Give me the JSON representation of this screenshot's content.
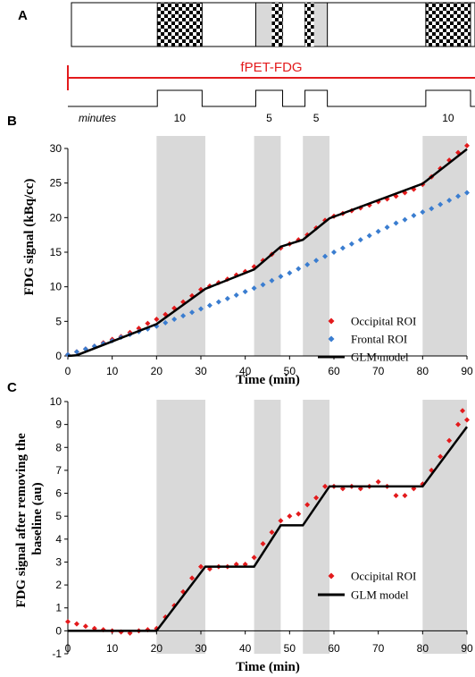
{
  "panel_a": {
    "letter": "A",
    "fpet_label": "fPET-FDG",
    "minutes_label": "minutes",
    "stim_blocks": [
      {
        "start": 20,
        "end": 30,
        "label": "10"
      },
      {
        "start": 42,
        "end": 48,
        "label": "5"
      },
      {
        "start": 53,
        "end": 58,
        "label": "5"
      },
      {
        "start": 80,
        "end": 90,
        "label": "10"
      }
    ],
    "colors": {
      "fpet": "#e31a1c",
      "checker_dark": "#000000",
      "checker_light": "#ffffff",
      "stim_fill": "#d9d9d9"
    }
  },
  "chart_data": [
    {
      "type": "scatter",
      "panel_letter": "B",
      "xlabel": "Time (min)",
      "ylabel": "FDG signal (kBq/cc)",
      "xlim": [
        0,
        90
      ],
      "ylim": [
        0,
        30
      ],
      "x_ticks": [
        0,
        10,
        20,
        30,
        40,
        50,
        60,
        70,
        80,
        90
      ],
      "y_ticks": [
        0,
        5,
        10,
        15,
        20,
        25,
        30
      ],
      "shaded_intervals": [
        [
          20,
          31
        ],
        [
          42,
          48
        ],
        [
          53,
          59
        ],
        [
          80,
          90
        ]
      ],
      "legend_position": "right",
      "series": [
        {
          "name": "Occipital ROI",
          "kind": "scatter",
          "color": "#e31a1c",
          "x": [
            0,
            2,
            4,
            6,
            8,
            10,
            12,
            14,
            16,
            18,
            20,
            22,
            24,
            26,
            28,
            30,
            32,
            34,
            36,
            38,
            40,
            42,
            44,
            46,
            48,
            50,
            52,
            54,
            56,
            58,
            60,
            62,
            64,
            66,
            68,
            70,
            72,
            74,
            76,
            78,
            80,
            82,
            84,
            86,
            88,
            90
          ],
          "y": [
            0.2,
            0.6,
            1.0,
            1.4,
            1.9,
            2.4,
            2.8,
            3.4,
            4.0,
            4.7,
            5.3,
            6.0,
            6.9,
            7.8,
            8.7,
            9.6,
            10.1,
            10.6,
            11.1,
            11.7,
            12.2,
            12.9,
            13.8,
            14.7,
            15.6,
            16.2,
            16.8,
            17.5,
            18.5,
            19.6,
            20.2,
            20.6,
            21.0,
            21.4,
            21.8,
            22.3,
            22.7,
            23.1,
            23.6,
            24.1,
            24.8,
            25.9,
            27.1,
            28.3,
            29.4,
            30.4
          ]
        },
        {
          "name": "Frontal ROI",
          "kind": "scatter",
          "color": "#3a7dd0",
          "x": [
            0,
            2,
            4,
            6,
            8,
            10,
            12,
            14,
            16,
            18,
            20,
            22,
            24,
            26,
            28,
            30,
            32,
            34,
            36,
            38,
            40,
            42,
            44,
            46,
            48,
            50,
            52,
            54,
            56,
            58,
            60,
            62,
            64,
            66,
            68,
            70,
            72,
            74,
            76,
            78,
            80,
            82,
            84,
            86,
            88,
            90
          ],
          "y": [
            0.2,
            0.6,
            1.0,
            1.4,
            1.8,
            2.2,
            2.7,
            3.1,
            3.5,
            3.9,
            4.3,
            4.8,
            5.3,
            5.8,
            6.3,
            6.8,
            7.3,
            7.8,
            8.3,
            8.8,
            9.3,
            9.8,
            10.3,
            10.9,
            11.5,
            12.0,
            12.6,
            13.2,
            13.8,
            14.4,
            15.0,
            15.6,
            16.2,
            16.8,
            17.4,
            18.0,
            18.6,
            19.2,
            19.7,
            20.3,
            20.8,
            21.3,
            21.9,
            22.5,
            23.1,
            23.6
          ]
        },
        {
          "name": "GLM model",
          "kind": "line",
          "color": "#000000",
          "x": [
            0,
            2,
            20,
            31,
            42,
            48,
            53,
            59,
            80,
            90
          ],
          "y": [
            0,
            0.1,
            4.6,
            9.7,
            12.5,
            15.8,
            16.8,
            19.9,
            24.9,
            29.9
          ]
        }
      ]
    },
    {
      "type": "scatter",
      "panel_letter": "C",
      "xlabel": "Time (min)",
      "ylabel": "FDG signal after removing the baseline (au)",
      "xlim": [
        0,
        90
      ],
      "ylim": [
        -1,
        10
      ],
      "x_ticks": [
        0,
        10,
        20,
        30,
        40,
        50,
        60,
        70,
        80,
        90
      ],
      "y_ticks": [
        -1,
        0,
        1,
        2,
        3,
        4,
        5,
        6,
        7,
        8,
        9,
        10
      ],
      "shaded_intervals": [
        [
          20,
          31
        ],
        [
          42,
          48
        ],
        [
          53,
          59
        ],
        [
          80,
          90
        ]
      ],
      "legend_position": "right",
      "series": [
        {
          "name": "Occipital ROI",
          "kind": "scatter",
          "color": "#e31a1c",
          "x": [
            0,
            2,
            4,
            6,
            8,
            10,
            12,
            14,
            16,
            18,
            20,
            22,
            24,
            26,
            28,
            30,
            32,
            34,
            36,
            38,
            40,
            42,
            44,
            46,
            48,
            50,
            52,
            54,
            56,
            58,
            60,
            62,
            64,
            66,
            68,
            70,
            72,
            74,
            76,
            78,
            80,
            82,
            84,
            86,
            88,
            89,
            90
          ],
          "y": [
            0.4,
            0.3,
            0.2,
            0.1,
            0.05,
            0,
            -0.05,
            -0.1,
            0,
            0.05,
            0.1,
            0.6,
            1.1,
            1.7,
            2.3,
            2.8,
            2.7,
            2.8,
            2.8,
            2.9,
            2.9,
            3.2,
            3.8,
            4.3,
            4.8,
            5.0,
            5.1,
            5.5,
            5.8,
            6.3,
            6.3,
            6.2,
            6.3,
            6.2,
            6.3,
            6.5,
            6.3,
            5.9,
            5.9,
            6.2,
            6.4,
            7.0,
            7.6,
            8.3,
            9.0,
            9.6,
            9.2
          ]
        },
        {
          "name": "GLM model",
          "kind": "line",
          "color": "#000000",
          "x": [
            0,
            20,
            31,
            42,
            48,
            53,
            59,
            80,
            90
          ],
          "y": [
            0,
            0,
            2.8,
            2.8,
            4.6,
            4.6,
            6.3,
            6.3,
            8.9
          ]
        }
      ]
    }
  ]
}
